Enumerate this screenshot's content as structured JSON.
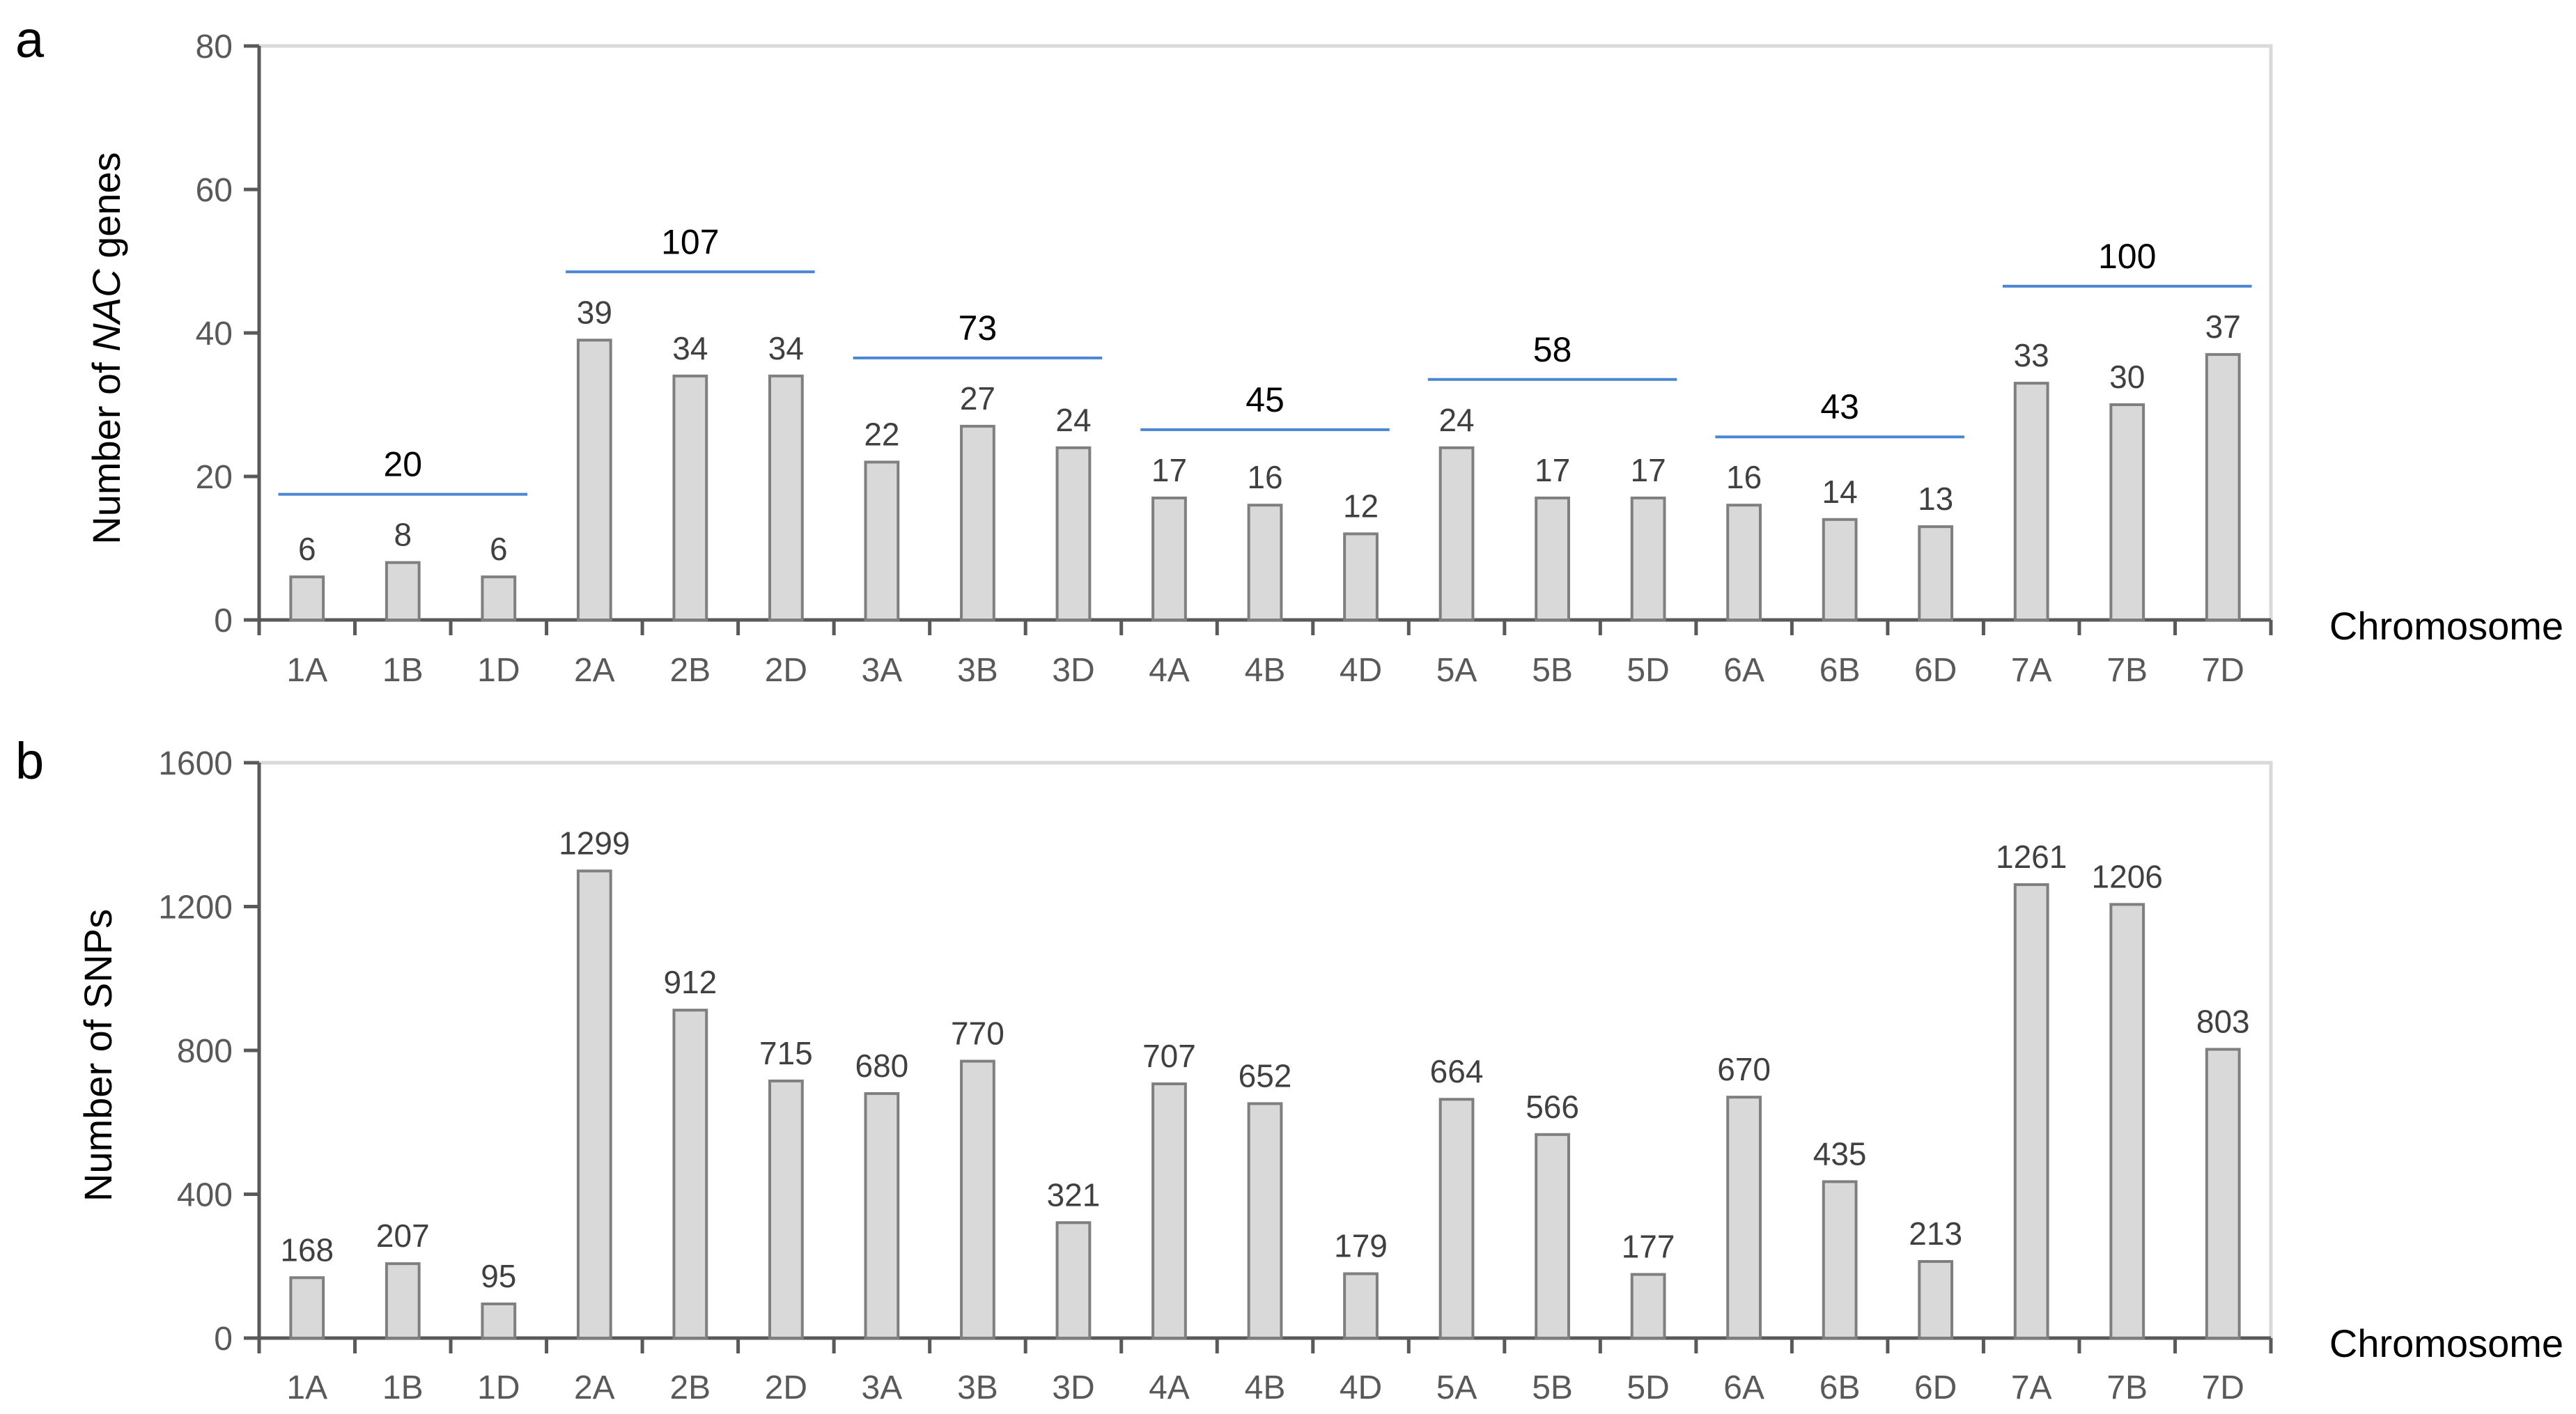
{
  "colors": {
    "bar_fill": "#d9d9d9",
    "bar_stroke": "#7f7f7f",
    "axis": "#595959",
    "frame": "#d9d9d9",
    "group_line": "#4a86d4",
    "text": "#000000"
  },
  "chart_data": [
    {
      "type": "bar",
      "panel_label": "a",
      "ylabel_pre": "Number of ",
      "ylabel_italic": "NAC",
      "ylabel_post": " genes",
      "xlabel": "Chromosome",
      "ylim": [
        0,
        80
      ],
      "yticks": [
        0,
        20,
        40,
        60,
        80
      ],
      "grid": false,
      "categories": [
        "1A",
        "1B",
        "1D",
        "2A",
        "2B",
        "2D",
        "3A",
        "3B",
        "3D",
        "4A",
        "4B",
        "4D",
        "5A",
        "5B",
        "5D",
        "6A",
        "6B",
        "6D",
        "7A",
        "7B",
        "7D"
      ],
      "values": [
        6,
        8,
        6,
        39,
        34,
        34,
        22,
        27,
        24,
        17,
        16,
        12,
        24,
        17,
        17,
        16,
        14,
        13,
        33,
        30,
        37
      ],
      "group_totals": [
        {
          "categories": [
            "1A",
            "1B",
            "1D"
          ],
          "total": 20
        },
        {
          "categories": [
            "2A",
            "2B",
            "2D"
          ],
          "total": 107
        },
        {
          "categories": [
            "3A",
            "3B",
            "3D"
          ],
          "total": 73
        },
        {
          "categories": [
            "4A",
            "4B",
            "4D"
          ],
          "total": 45
        },
        {
          "categories": [
            "5A",
            "5B",
            "5D"
          ],
          "total": 58
        },
        {
          "categories": [
            "6A",
            "6B",
            "6D"
          ],
          "total": 43
        },
        {
          "categories": [
            "7A",
            "7B",
            "7D"
          ],
          "total": 100
        }
      ]
    },
    {
      "type": "bar",
      "panel_label": "b",
      "ylabel": "Number of SNPs",
      "xlabel": "Chromosome",
      "ylim": [
        0,
        1600
      ],
      "yticks": [
        0,
        400,
        800,
        1200,
        1600
      ],
      "grid": false,
      "categories": [
        "1A",
        "1B",
        "1D",
        "2A",
        "2B",
        "2D",
        "3A",
        "3B",
        "3D",
        "4A",
        "4B",
        "4D",
        "5A",
        "5B",
        "5D",
        "6A",
        "6B",
        "6D",
        "7A",
        "7B",
        "7D"
      ],
      "values": [
        168,
        207,
        95,
        1299,
        912,
        715,
        680,
        770,
        321,
        707,
        652,
        179,
        664,
        566,
        177,
        670,
        435,
        213,
        1261,
        1206,
        803
      ]
    }
  ]
}
